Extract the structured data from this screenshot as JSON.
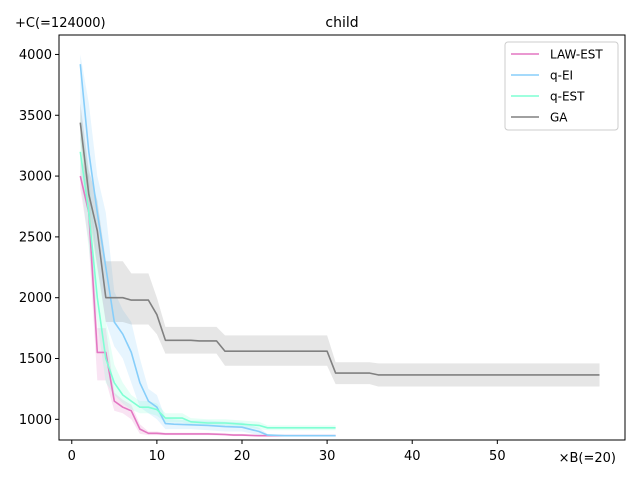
{
  "chart_data": {
    "type": "line",
    "title": "child",
    "y_offset_label": "+C(=124000)",
    "x_scale_label": "×B(=20)",
    "xlim": [
      -1.5,
      65
    ],
    "ylim": [
      830,
      4160
    ],
    "x_ticks": [
      0,
      10,
      20,
      30,
      40,
      50
    ],
    "y_ticks": [
      1000,
      1500,
      2000,
      2500,
      3000,
      3500,
      4000
    ],
    "legend_position": "top-right",
    "series": [
      {
        "name": "LAW-EST",
        "color": "#e377c2",
        "x": [
          1,
          2,
          3,
          4,
          5,
          6,
          7,
          8,
          9,
          10,
          11,
          12,
          14,
          16,
          18,
          19,
          20,
          22,
          24,
          26,
          28,
          31
        ],
        "y": [
          3000,
          2700,
          1550,
          1550,
          1150,
          1100,
          1070,
          920,
          885,
          885,
          880,
          880,
          880,
          880,
          875,
          870,
          870,
          865,
          865,
          865,
          865,
          865
        ],
        "lower": [
          2900,
          2450,
          1320,
          1320,
          1070,
          1050,
          1000,
          880,
          870,
          870,
          870,
          870,
          870,
          870,
          865,
          862,
          862,
          860,
          860,
          860,
          860,
          860
        ],
        "upper": [
          3150,
          3000,
          1750,
          1750,
          1220,
          1160,
          1120,
          960,
          900,
          900,
          890,
          890,
          890,
          890,
          885,
          880,
          880,
          870,
          870,
          870,
          870,
          870
        ]
      },
      {
        "name": "q-EI",
        "color": "#87cefa",
        "x": [
          1,
          2,
          3,
          4,
          5,
          6,
          7,
          8,
          9,
          10,
          11,
          12,
          14,
          16,
          18,
          20,
          22,
          23,
          25,
          28,
          31
        ],
        "y": [
          3920,
          3200,
          2700,
          2250,
          1800,
          1700,
          1550,
          1300,
          1150,
          1100,
          965,
          960,
          955,
          950,
          940,
          935,
          900,
          870,
          865,
          865,
          865
        ],
        "lower": [
          3500,
          2800,
          2300,
          1800,
          1600,
          1500,
          1300,
          1100,
          1050,
          1000,
          920,
          920,
          920,
          910,
          900,
          900,
          870,
          860,
          860,
          860,
          860
        ],
        "upper": [
          4000,
          3600,
          3000,
          2700,
          2050,
          1900,
          1800,
          1500,
          1250,
          1200,
          1010,
          1000,
          990,
          990,
          980,
          975,
          930,
          880,
          872,
          872,
          872
        ]
      },
      {
        "name": "q-EST",
        "color": "#7fffd4",
        "x": [
          1,
          2,
          3,
          4,
          5,
          6,
          7,
          8,
          9,
          10,
          11,
          12,
          13,
          14,
          16,
          18,
          20,
          22,
          23,
          25,
          28,
          31
        ],
        "y": [
          3200,
          2700,
          2000,
          1500,
          1300,
          1200,
          1150,
          1100,
          1100,
          1080,
          1010,
          1010,
          1010,
          980,
          970,
          970,
          960,
          950,
          930,
          930,
          930,
          930
        ],
        "lower": [
          3000,
          2400,
          1800,
          1300,
          1200,
          1130,
          1080,
          1050,
          1050,
          1030,
          975,
          975,
          975,
          950,
          945,
          945,
          940,
          920,
          910,
          910,
          910,
          910
        ],
        "upper": [
          3500,
          3000,
          2300,
          1800,
          1450,
          1300,
          1200,
          1150,
          1150,
          1130,
          1050,
          1050,
          1050,
          1010,
          1000,
          1000,
          990,
          980,
          950,
          950,
          950,
          950
        ]
      },
      {
        "name": "GA",
        "color": "#808080",
        "x": [
          1,
          2,
          3,
          4,
          5,
          6,
          7,
          8,
          9,
          10,
          11,
          12,
          13,
          14,
          15,
          16,
          17,
          18,
          19,
          20,
          25,
          30,
          31,
          32,
          33,
          34,
          35,
          36,
          40,
          50,
          62
        ],
        "y": [
          3440,
          2850,
          2550,
          2000,
          2000,
          2000,
          1980,
          1980,
          1980,
          1860,
          1650,
          1650,
          1650,
          1650,
          1645,
          1645,
          1645,
          1560,
          1560,
          1560,
          1560,
          1560,
          1380,
          1380,
          1380,
          1380,
          1380,
          1365,
          1365,
          1365,
          1365
        ],
        "lower": [
          3300,
          2700,
          2250,
          1800,
          1800,
          1800,
          1780,
          1780,
          1780,
          1700,
          1540,
          1540,
          1540,
          1540,
          1540,
          1540,
          1540,
          1440,
          1440,
          1440,
          1440,
          1440,
          1290,
          1290,
          1290,
          1290,
          1290,
          1270,
          1270,
          1270,
          1270
        ],
        "upper": [
          3600,
          3050,
          2800,
          2300,
          2300,
          2300,
          2200,
          2200,
          2200,
          2000,
          1760,
          1760,
          1760,
          1760,
          1760,
          1760,
          1760,
          1690,
          1690,
          1690,
          1690,
          1690,
          1470,
          1470,
          1470,
          1470,
          1470,
          1460,
          1460,
          1460,
          1460
        ]
      }
    ]
  }
}
